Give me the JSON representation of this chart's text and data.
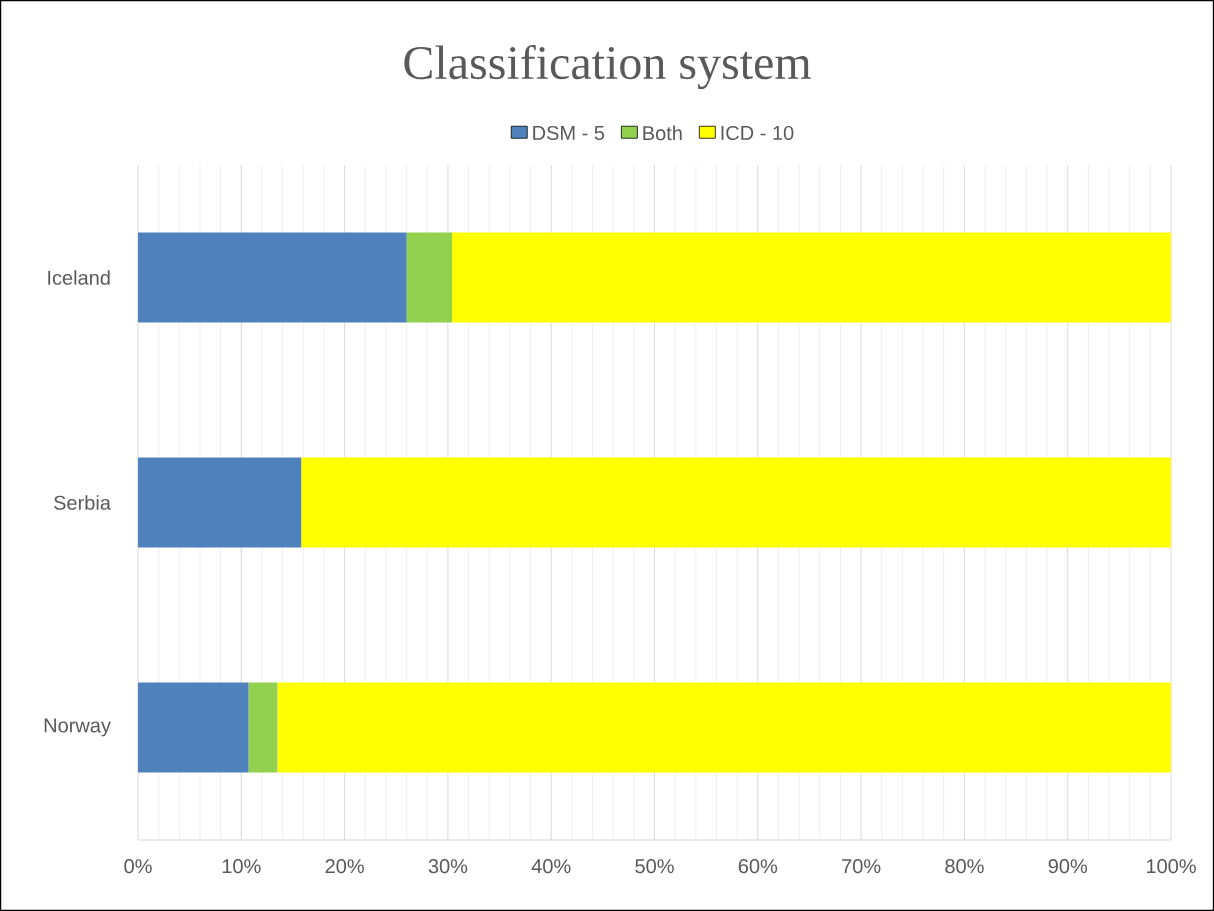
{
  "chart_data": {
    "type": "bar",
    "orientation": "horizontal",
    "stacked": true,
    "title": "Classification system",
    "categories": [
      "Iceland",
      "Serbia",
      "Norway"
    ],
    "series": [
      {
        "name": "DSM - 5",
        "color": "#4f81bd",
        "values": [
          26.0,
          15.8,
          10.7
        ]
      },
      {
        "name": "Both",
        "color": "#92d050",
        "values": [
          4.4,
          0,
          2.8
        ]
      },
      {
        "name": "ICD - 10",
        "color": "#ffff00",
        "values": [
          69.6,
          84.2,
          86.5
        ]
      }
    ],
    "xlim": [
      0,
      100
    ],
    "xticks": [
      {
        "value": 0,
        "label": "0%"
      },
      {
        "value": 10,
        "label": "10%"
      },
      {
        "value": 20,
        "label": "20%"
      },
      {
        "value": 30,
        "label": "30%"
      },
      {
        "value": 40,
        "label": "40%"
      },
      {
        "value": 50,
        "label": "50%"
      },
      {
        "value": 60,
        "label": "60%"
      },
      {
        "value": 70,
        "label": "70%"
      },
      {
        "value": 80,
        "label": "80%"
      },
      {
        "value": 90,
        "label": "90%"
      },
      {
        "value": 100,
        "label": "100%"
      }
    ],
    "grid": "x",
    "legend": "top"
  }
}
